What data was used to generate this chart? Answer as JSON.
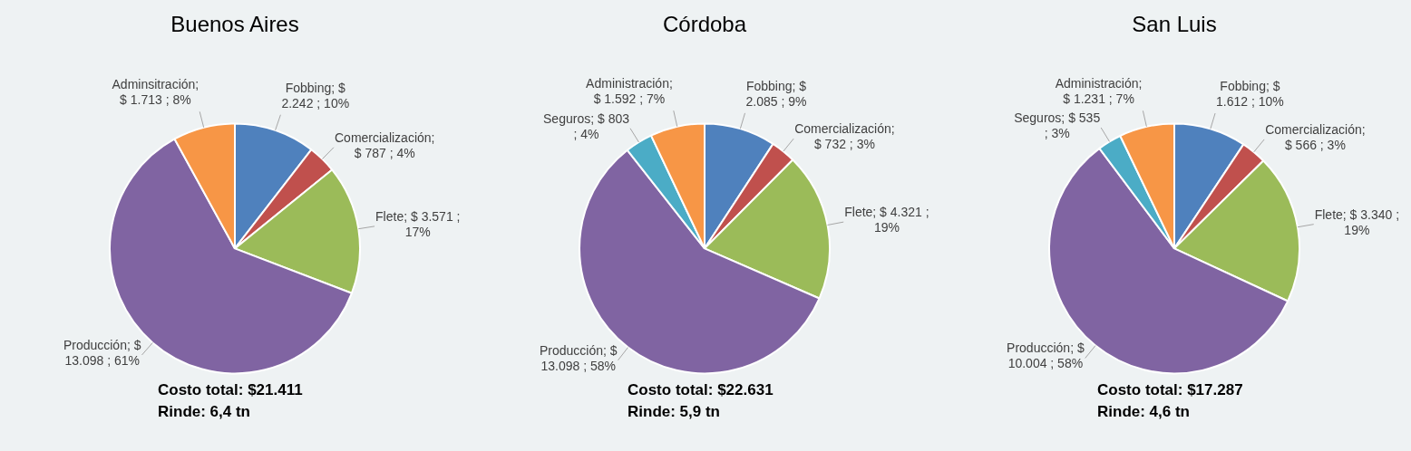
{
  "chart_data": [
    {
      "type": "pie",
      "title": "Buenos Aires",
      "categories": [
        "Fobbing",
        "Comercialización",
        "Flete",
        "Producción",
        "Adminsitración"
      ],
      "values": [
        2242,
        787,
        3571,
        13098,
        1713
      ],
      "colors": [
        "#4f81bd",
        "#c0504d",
        "#9bbb59",
        "#8064a2",
        "#f79646"
      ],
      "value_labels": [
        "; $ 2.242 ; 10%",
        "; $ 787 ; 4%",
        "; $ 3.571 ; 17%",
        "; $ 13.098 ; 61%",
        "; $ 1.713 ; 8%"
      ],
      "annotations": [
        "Costo total: $21.411",
        "Rinde: 6,4 tn"
      ]
    },
    {
      "type": "pie",
      "title": "Córdoba",
      "categories": [
        "Fobbing",
        "Comercialización",
        "Flete",
        "Producción",
        "Seguros",
        "Administración"
      ],
      "values": [
        2085,
        732,
        4321,
        13098,
        803,
        1592
      ],
      "colors": [
        "#4f81bd",
        "#c0504d",
        "#9bbb59",
        "#8064a2",
        "#4bacc6",
        "#f79646"
      ],
      "value_labels": [
        "; $ 2.085 ; 9%",
        "; $ 732 ; 3%",
        "; $ 4.321 ; 19%",
        "; $ 13.098 ; 58%",
        "; $ 803 ; 4%",
        "; $ 1.592 ; 7%"
      ],
      "annotations": [
        "Costo total: $22.631",
        "Rinde: 5,9 tn"
      ]
    },
    {
      "type": "pie",
      "title": "San Luis",
      "categories": [
        "Fobbing",
        "Comercialización",
        "Flete",
        "Producción",
        "Seguros",
        "Administración"
      ],
      "values": [
        1612,
        566,
        3340,
        10004,
        535,
        1231
      ],
      "colors": [
        "#4f81bd",
        "#c0504d",
        "#9bbb59",
        "#8064a2",
        "#4bacc6",
        "#f79646"
      ],
      "value_labels": [
        "; $ 1.612 ; 10%",
        "; $ 566 ; 3%",
        "; $ 3.340 ; 19%",
        "; $ 10.004 ; 58%",
        "; $ 535 ; 3%",
        "; $ 1.231 ; 7%"
      ],
      "annotations": [
        "Costo total: $17.287",
        "Rinde: 4,6 tn"
      ]
    }
  ]
}
